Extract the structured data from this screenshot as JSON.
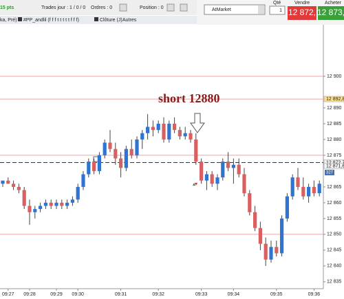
{
  "toolbar": {
    "points": "15 pts",
    "trades": "Trades jour : 1 / 0 / 0",
    "orders": "Ordres : 0",
    "position": "Position : 0",
    "order_type": "AtMarket",
    "qty_label": "Qté",
    "qty": "1",
    "sell_label": "Vendre",
    "sell_price": "12 872,",
    "buy_label": "Acheter",
    "buy_price": "12 873,"
  },
  "tabs": [
    "ka, Pré)",
    "#PP_andlil (f f f t t t t t f f f)",
    "Clôture (J)",
    "Autres"
  ],
  "countdown": "327",
  "chart_data": {
    "type": "candlestick",
    "annotation": "short 12880",
    "up_color": "#2f74d0",
    "down_color": "#d96060",
    "categories": [
      null,
      "09:27",
      null,
      null,
      null,
      "09:28",
      null,
      null,
      null,
      null,
      "09:29",
      null,
      null,
      null,
      "09:30",
      null,
      null,
      null,
      null,
      null,
      null,
      null,
      "09:31",
      null,
      null,
      null,
      null,
      null,
      null,
      "09:32",
      null,
      null,
      null,
      null,
      null,
      null,
      null,
      "09:33",
      null,
      null,
      null,
      null,
      null,
      "09:34",
      null,
      null,
      null,
      null,
      null,
      null,
      null,
      "09:35",
      null,
      null,
      null,
      null,
      null,
      null,
      "09:36",
      null
    ],
    "open": [
      12866,
      12867,
      12866,
      12865,
      12864,
      12859,
      12857,
      12858,
      12859,
      12860,
      12859,
      12860,
      12859,
      12860,
      12861,
      12865,
      12869,
      12873,
      12870,
      12875,
      12879,
      12877,
      12874,
      12871,
      12877,
      12875,
      12880,
      12882,
      12884,
      12883,
      12885,
      12880,
      12885,
      12883,
      12881,
      12882,
      12880,
      12873,
      12867,
      12869,
      12866,
      12868,
      12873,
      12871,
      12872,
      12869,
      12863,
      12857,
      12852,
      12847,
      12842,
      12846,
      12844,
      12855,
      12862,
      12868,
      12865,
      12862,
      12865,
      12863
    ],
    "high": [
      12867,
      12868,
      12867,
      12866,
      12865,
      12861,
      12859,
      12860,
      12861,
      12861,
      12861,
      12861,
      12861,
      12862,
      12866,
      12870,
      12874,
      12874,
      12876,
      12880,
      12883,
      12879,
      12876,
      12878,
      12880,
      12881,
      12883,
      12888,
      12886,
      12886,
      12887,
      12886,
      12887,
      12884,
      12884,
      12883,
      12882,
      12874,
      12870,
      12870,
      12869,
      12874,
      12876,
      12874,
      12874,
      12871,
      12864,
      12859,
      12854,
      12849,
      12848,
      12848,
      12856,
      12863,
      12869,
      12871,
      12868,
      12866,
      12867,
      12867
    ],
    "low": [
      12865,
      12866,
      12864,
      12863,
      12858,
      12853,
      12855,
      12857,
      12858,
      12858,
      12858,
      12858,
      12858,
      12859,
      12860,
      12864,
      12868,
      12869,
      12869,
      12874,
      12876,
      12872,
      12868,
      12870,
      12874,
      12874,
      12877,
      12880,
      12881,
      12882,
      12879,
      12879,
      12882,
      12880,
      12880,
      12879,
      12872,
      12866,
      12864,
      12865,
      12864,
      12867,
      12870,
      12866,
      12868,
      12862,
      12856,
      12851,
      12845,
      12840,
      12841,
      12843,
      12843,
      12854,
      12861,
      12864,
      12861,
      12860,
      12862,
      12862
    ],
    "close": [
      12867,
      12866,
      12865,
      12864,
      12859,
      12857,
      12858,
      12859,
      12860,
      12859,
      12860,
      12859,
      12860,
      12861,
      12865,
      12869,
      12873,
      12870,
      12875,
      12879,
      12877,
      12874,
      12871,
      12877,
      12875,
      12880,
      12882,
      12884,
      12883,
      12885,
      12880,
      12885,
      12883,
      12881,
      12882,
      12880,
      12873,
      12867,
      12869,
      12866,
      12868,
      12873,
      12871,
      12872,
      12869,
      12863,
      12857,
      12852,
      12847,
      12842,
      12846,
      12844,
      12855,
      12862,
      12868,
      12865,
      12862,
      12865,
      12863,
      12866
    ],
    "ylim": [
      12832.8,
      12916.3
    ],
    "yticks": [
      {
        "value": 12900,
        "label": "12 900"
      },
      {
        "value": 12890,
        "label": "12 890"
      },
      {
        "value": 12885,
        "label": "12 885"
      },
      {
        "value": 12880,
        "label": "12 880"
      },
      {
        "value": 12875,
        "label": "12 875"
      },
      {
        "value": 12865,
        "label": "12 865"
      },
      {
        "value": 12860,
        "label": "12 860"
      },
      {
        "value": 12855,
        "label": "12 855"
      },
      {
        "value": 12850,
        "label": "12 850"
      },
      {
        "value": 12845,
        "label": "12 845"
      },
      {
        "value": 12840,
        "label": "12 840"
      },
      {
        "value": 12835,
        "label": "12 835"
      }
    ],
    "price_markers": [
      {
        "value": 12892.8,
        "label": "12 892,8"
      },
      {
        "value": 12872.7,
        "label": "12 872,7"
      },
      {
        "value": 12871.6,
        "label": "12 871,6"
      }
    ],
    "levels": [
      {
        "value": 12900,
        "color": "#f0a0a0"
      },
      {
        "value": 12892.8,
        "color": "#f0a0a0"
      },
      {
        "value": 12875,
        "color": "#f0a0a0"
      },
      {
        "value": 12872.7,
        "color": "#333333",
        "dashed": true
      },
      {
        "value": 12850,
        "color": "#f0a0a0"
      }
    ]
  }
}
